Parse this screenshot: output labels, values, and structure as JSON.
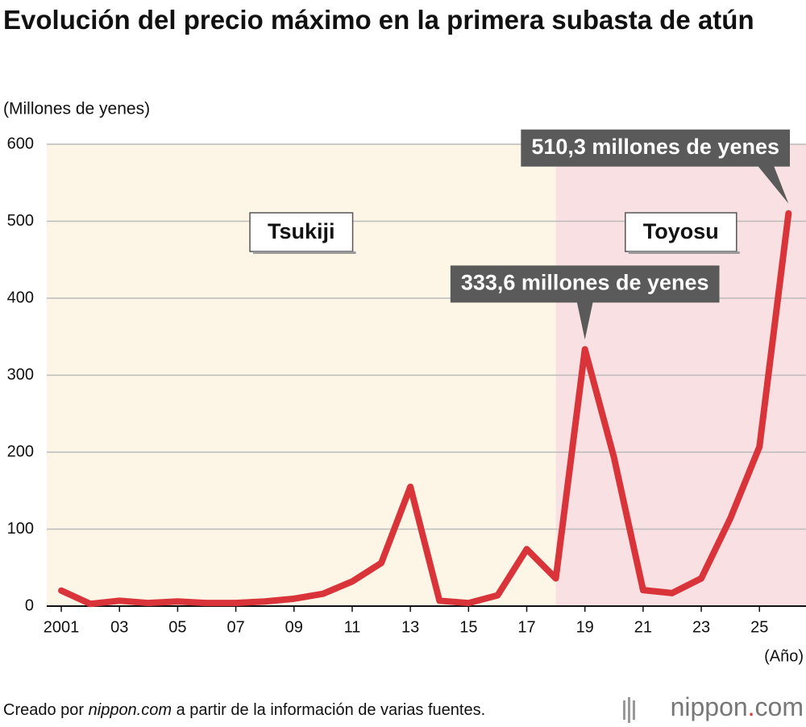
{
  "chart_data": {
    "type": "line",
    "title": "Evolución del precio máximo en la primera subasta de atún",
    "y_label": "(Millones de yenes)",
    "x_label": "(Año)",
    "x": [
      2001,
      2002,
      2003,
      2004,
      2005,
      2006,
      2007,
      2008,
      2009,
      2010,
      2011,
      2012,
      2013,
      2014,
      2015,
      2016,
      2017,
      2018,
      2019,
      2020,
      2021,
      2022,
      2023,
      2024,
      2025,
      2026
    ],
    "series": [
      {
        "name": "Precio máximo",
        "color": "#d9343a",
        "values": [
          20.2,
          2.9,
          7,
          4,
          6,
          4,
          4,
          6,
          9.6,
          16,
          32,
          56,
          155,
          7,
          4,
          14,
          74,
          36,
          333.6,
          193,
          20.8,
          16.9,
          36,
          114,
          207,
          510.3
        ],
        "value_labels": [
          null,
          null,
          null,
          null,
          null,
          null,
          null,
          null,
          null,
          null,
          null,
          null,
          null,
          null,
          null,
          null,
          null,
          null,
          "333,6 millones de yenes",
          null,
          null,
          null,
          null,
          null,
          null,
          "510,3 millones de yenes"
        ]
      }
    ],
    "xlim": [
      2000.5,
      2026.6
    ],
    "ylim": [
      0,
      600
    ],
    "xticks": [
      2001,
      {
        "value": 2003,
        "label": "03"
      },
      {
        "value": 2005,
        "label": "05"
      },
      {
        "value": 2007,
        "label": "07"
      },
      {
        "value": 2009,
        "label": "09"
      },
      {
        "value": 2011,
        "label": "11"
      },
      {
        "value": 2013,
        "label": "13"
      },
      {
        "value": 2015,
        "label": "15"
      },
      {
        "value": 2017,
        "label": "17"
      },
      {
        "value": 2019,
        "label": "19"
      },
      {
        "value": 2021,
        "label": "21"
      },
      {
        "value": 2023,
        "label": "23"
      },
      {
        "value": 2025,
        "label": "25"
      }
    ],
    "yticks": [
      0,
      100,
      200,
      300,
      400,
      500,
      600
    ],
    "grid": true,
    "regions": [
      {
        "label": "Tsukiji",
        "from": 2000.5,
        "to": 2018,
        "color": "#fdf6e6"
      },
      {
        "label": "Toyosu",
        "from": 2018,
        "to": 2026.6,
        "color": "#f9e1e3"
      }
    ]
  },
  "footer": {
    "source": [
      "Creado por ",
      "nippon.com",
      " a partir de la información de varias fuentes."
    ],
    "logo": [
      "nippon",
      ".",
      "com"
    ]
  }
}
